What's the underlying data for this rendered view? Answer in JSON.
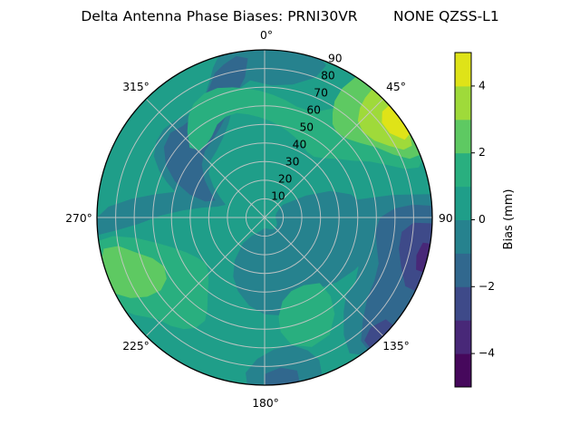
{
  "figure": {
    "title": "Delta Antenna Phase Biases: PRNI30VR        NONE QZSS-L1",
    "background": "#ffffff"
  },
  "chart_data": {
    "type": "heatmap",
    "subtype": "polar_filled_contour",
    "title": "Delta Antenna Phase Biases: PRNI30VR        NONE QZSS-L1",
    "colormap": "viridis",
    "theta_zero_location": "top",
    "theta_direction": "clockwise",
    "theta_tick_labels": [
      "0°",
      "45°",
      "90",
      "135°",
      "180°",
      "225°",
      "270°",
      "315°"
    ],
    "r_tick_labels": [
      "10",
      "20",
      "30",
      "40",
      "50",
      "60",
      "70",
      "80",
      "90"
    ],
    "r_max": 90,
    "grid": true,
    "grid_color": "#c8c8c8",
    "levels_mm": [
      -5,
      -4,
      -3,
      -2,
      -1,
      0,
      1,
      2,
      3,
      4,
      5
    ],
    "colorbar": {
      "label": "Bias (mm)",
      "min": -5,
      "max": 5,
      "tick_values": [
        4,
        2,
        0,
        -2,
        -4
      ],
      "tick_labels": [
        "4",
        "2",
        "0",
        "−2",
        "−4"
      ],
      "segment_colors_bottom_to_top": [
        "#46085c",
        "#482878",
        "#3e4a89",
        "#31688e",
        "#26828e",
        "#1f9e89",
        "#29af7f",
        "#5ec962",
        "#9fda3a",
        "#dfe318"
      ]
    },
    "features": [
      {
        "region": "NE rim, azimuth 45-62, radius 78-90",
        "bias_mm": "4 to 5",
        "note": "bright yellow maximum hugging the rim near 45 deg"
      },
      {
        "region": "NE, azimuth 35-68, radius 60-90",
        "bias_mm": "2 to 4",
        "note": "green/yellow-green halo around the maximum"
      },
      {
        "region": "north crescent, azimuth 315 through 70, radius 45-80",
        "bias_mm": "1 to 2"
      },
      {
        "region": "SW, azimuth 235-262, radius 55-90",
        "bias_mm": "2 to 3",
        "note": "light green patch at SW rim"
      },
      {
        "region": "SW, azimuth 210-276, radius 40-90",
        "bias_mm": "1 to 2"
      },
      {
        "region": "SSE, azimuth 140-172, radius 45-72",
        "bias_mm": "1 to 2",
        "note": "small emerald tongue"
      },
      {
        "region": "E-SE rim, azimuth 88-143, radius 60-90",
        "bias_mm": "-2 to -3",
        "note": "steel blue band"
      },
      {
        "region": "E rim, azimuth 92-118, radius 76-90",
        "bias_mm": "-3 to -4",
        "note": "indigo patch with small dark purple sliver (-4 to -5) at azimuth 99-112"
      },
      {
        "region": "NW band, azimuth 278-356, radius 25-90",
        "bias_mm": "-1 to -2",
        "note": "broad blue snake from top rim down the west side"
      },
      {
        "region": "top rim arc, azimuth 352-22, radius 72-90",
        "bias_mm": "-1 to 0"
      },
      {
        "region": "bottom rim, azimuth 160-186, radius 70-90",
        "bias_mm": "-1 to -2"
      },
      {
        "region": "center and remaining disk",
        "bias_mm": "-1 to 1",
        "note": "teal background, 0-1 north of center, -1-0 east/south of center"
      }
    ]
  }
}
